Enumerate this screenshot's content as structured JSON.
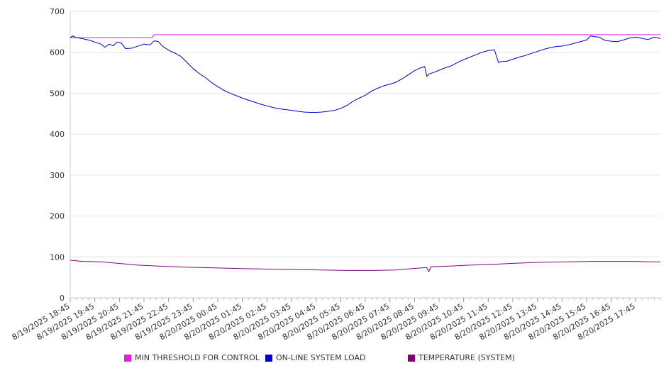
{
  "chart_data": {
    "type": "line",
    "title": "",
    "xlabel": "",
    "ylabel": "",
    "ylim": [
      0,
      700
    ],
    "yticks": [
      0,
      100,
      200,
      300,
      400,
      500,
      600,
      700
    ],
    "grid": true,
    "legend_position": "bottom",
    "x_range": [
      "8/19/2025 18:45",
      "8/20/2025 18:45"
    ],
    "x_tick_labels": [
      "8/19/2025 18:45",
      "8/19/2025 19:45",
      "8/19/2025 20:45",
      "8/19/2025 21:45",
      "8/19/2025 22:45",
      "8/19/2025 23:45",
      "8/20/2025 00:45",
      "8/20/2025 01:45",
      "8/20/2025 02:45",
      "8/20/2025 03:45",
      "8/20/2025 04:45",
      "8/20/2025 05:45",
      "8/20/2025 06:45",
      "8/20/2025 07:45",
      "8/20/2025 08:45",
      "8/20/2025 09:45",
      "8/20/2025 10:45",
      "8/20/2025 11:45",
      "8/20/2025 12:45",
      "8/20/2025 13:45",
      "8/20/2025 14:45",
      "8/20/2025 15:45",
      "8/20/2025 16:45",
      "8/20/2025 17:45"
    ],
    "series": [
      {
        "name": "MIN THRESHOLD FOR CONTROL",
        "color": "#E020E0",
        "points": [
          [
            "8/19/2025 18:45",
            636
          ],
          [
            "8/19/2025 22:05",
            636
          ],
          [
            "8/19/2025 22:10",
            643
          ],
          [
            "8/20/2025 18:45",
            643
          ]
        ]
      },
      {
        "name": "ON-LINE SYSTEM LOAD",
        "color": "#0000CC",
        "points": [
          [
            "8/19/2025 18:45",
            635
          ],
          [
            "8/19/2025 18:50",
            640
          ],
          [
            "8/19/2025 19:00",
            636
          ],
          [
            "8/19/2025 19:15",
            633
          ],
          [
            "8/19/2025 19:30",
            630
          ],
          [
            "8/19/2025 19:45",
            625
          ],
          [
            "8/19/2025 20:00",
            620
          ],
          [
            "8/19/2025 20:10",
            612
          ],
          [
            "8/19/2025 20:20",
            620
          ],
          [
            "8/19/2025 20:30",
            616
          ],
          [
            "8/19/2025 20:40",
            625
          ],
          [
            "8/19/2025 20:50",
            622
          ],
          [
            "8/19/2025 21:00",
            609
          ],
          [
            "8/19/2025 21:15",
            610
          ],
          [
            "8/19/2025 21:30",
            615
          ],
          [
            "8/19/2025 21:45",
            620
          ],
          [
            "8/19/2025 22:00",
            618
          ],
          [
            "8/19/2025 22:10",
            628
          ],
          [
            "8/19/2025 22:20",
            626
          ],
          [
            "8/19/2025 22:30",
            615
          ],
          [
            "8/19/2025 22:45",
            605
          ],
          [
            "8/19/2025 23:00",
            598
          ],
          [
            "8/19/2025 23:15",
            590
          ],
          [
            "8/19/2025 23:30",
            575
          ],
          [
            "8/19/2025 23:45",
            560
          ],
          [
            "8/20/2025 00:00",
            548
          ],
          [
            "8/20/2025 00:15",
            538
          ],
          [
            "8/20/2025 00:30",
            526
          ],
          [
            "8/20/2025 00:45",
            516
          ],
          [
            "8/20/2025 01:00",
            507
          ],
          [
            "8/20/2025 01:15",
            500
          ],
          [
            "8/20/2025 01:30",
            494
          ],
          [
            "8/20/2025 01:45",
            488
          ],
          [
            "8/20/2025 02:00",
            483
          ],
          [
            "8/20/2025 02:15",
            478
          ],
          [
            "8/20/2025 02:30",
            473
          ],
          [
            "8/20/2025 02:45",
            469
          ],
          [
            "8/20/2025 03:00",
            465
          ],
          [
            "8/20/2025 03:15",
            462
          ],
          [
            "8/20/2025 03:30",
            460
          ],
          [
            "8/20/2025 03:45",
            458
          ],
          [
            "8/20/2025 04:00",
            456
          ],
          [
            "8/20/2025 04:15",
            454
          ],
          [
            "8/20/2025 04:30",
            453
          ],
          [
            "8/20/2025 04:45",
            453
          ],
          [
            "8/20/2025 05:00",
            454
          ],
          [
            "8/20/2025 05:15",
            456
          ],
          [
            "8/20/2025 05:30",
            458
          ],
          [
            "8/20/2025 05:45",
            463
          ],
          [
            "8/20/2025 06:00",
            470
          ],
          [
            "8/20/2025 06:15",
            480
          ],
          [
            "8/20/2025 06:30",
            488
          ],
          [
            "8/20/2025 06:45",
            495
          ],
          [
            "8/20/2025 07:00",
            505
          ],
          [
            "8/20/2025 07:15",
            512
          ],
          [
            "8/20/2025 07:30",
            518
          ],
          [
            "8/20/2025 07:45",
            522
          ],
          [
            "8/20/2025 08:00",
            527
          ],
          [
            "8/20/2025 08:15",
            535
          ],
          [
            "8/20/2025 08:30",
            545
          ],
          [
            "8/20/2025 08:45",
            555
          ],
          [
            "8/20/2025 09:00",
            562
          ],
          [
            "8/20/2025 09:10",
            565
          ],
          [
            "8/20/2025 09:15",
            541
          ],
          [
            "8/20/2025 09:20",
            547
          ],
          [
            "8/20/2025 09:30",
            550
          ],
          [
            "8/20/2025 09:45",
            556
          ],
          [
            "8/20/2025 10:00",
            562
          ],
          [
            "8/20/2025 10:15",
            567
          ],
          [
            "8/20/2025 10:30",
            575
          ],
          [
            "8/20/2025 10:45",
            582
          ],
          [
            "8/20/2025 11:00",
            588
          ],
          [
            "8/20/2025 11:15",
            594
          ],
          [
            "8/20/2025 11:30",
            600
          ],
          [
            "8/20/2025 11:45",
            604
          ],
          [
            "8/20/2025 12:00",
            606
          ],
          [
            "8/20/2025 12:10",
            575
          ],
          [
            "8/20/2025 12:15",
            577
          ],
          [
            "8/20/2025 12:30",
            578
          ],
          [
            "8/20/2025 12:45",
            583
          ],
          [
            "8/20/2025 13:00",
            588
          ],
          [
            "8/20/2025 13:15",
            592
          ],
          [
            "8/20/2025 13:30",
            597
          ],
          [
            "8/20/2025 13:45",
            602
          ],
          [
            "8/20/2025 14:00",
            607
          ],
          [
            "8/20/2025 14:15",
            611
          ],
          [
            "8/20/2025 14:30",
            614
          ],
          [
            "8/20/2025 14:45",
            615
          ],
          [
            "8/20/2025 15:00",
            618
          ],
          [
            "8/20/2025 15:15",
            622
          ],
          [
            "8/20/2025 15:30",
            626
          ],
          [
            "8/20/2025 15:45",
            630
          ],
          [
            "8/20/2025 15:55",
            640
          ],
          [
            "8/20/2025 16:05",
            638
          ],
          [
            "8/20/2025 16:15",
            637
          ],
          [
            "8/20/2025 16:30",
            629
          ],
          [
            "8/20/2025 16:45",
            627
          ],
          [
            "8/20/2025 17:00",
            626
          ],
          [
            "8/20/2025 17:15",
            630
          ],
          [
            "8/20/2025 17:30",
            635
          ],
          [
            "8/20/2025 17:45",
            637
          ],
          [
            "8/20/2025 18:00",
            634
          ],
          [
            "8/20/2025 18:15",
            631
          ],
          [
            "8/20/2025 18:30",
            637
          ],
          [
            "8/20/2025 18:40",
            635
          ],
          [
            "8/20/2025 18:45",
            633
          ]
        ]
      },
      {
        "name": "TEMPERATURE (SYSTEM)",
        "color": "#800080",
        "points": [
          [
            "8/19/2025 18:45",
            92
          ],
          [
            "8/19/2025 19:15",
            89
          ],
          [
            "8/19/2025 20:00",
            88
          ],
          [
            "8/19/2025 20:45",
            84
          ],
          [
            "8/19/2025 21:30",
            80
          ],
          [
            "8/19/2025 22:30",
            77
          ],
          [
            "8/19/2025 23:30",
            75
          ],
          [
            "8/20/2025 00:45",
            73
          ],
          [
            "8/20/2025 02:00",
            71
          ],
          [
            "8/20/2025 03:00",
            70
          ],
          [
            "8/20/2025 04:00",
            69
          ],
          [
            "8/20/2025 05:00",
            68
          ],
          [
            "8/20/2025 06:00",
            67
          ],
          [
            "8/20/2025 07:00",
            67
          ],
          [
            "8/20/2025 08:00",
            68
          ],
          [
            "8/20/2025 08:45",
            72
          ],
          [
            "8/20/2025 09:15",
            74
          ],
          [
            "8/20/2025 09:20",
            64
          ],
          [
            "8/20/2025 09:25",
            76
          ],
          [
            "8/20/2025 10:00",
            77
          ],
          [
            "8/20/2025 11:00",
            80
          ],
          [
            "8/20/2025 12:00",
            82
          ],
          [
            "8/20/2025 13:00",
            85
          ],
          [
            "8/20/2025 14:00",
            87
          ],
          [
            "8/20/2025 15:00",
            88
          ],
          [
            "8/20/2025 16:00",
            89
          ],
          [
            "8/20/2025 17:00",
            89
          ],
          [
            "8/20/2025 17:45",
            89
          ],
          [
            "8/20/2025 18:15",
            88
          ],
          [
            "8/20/2025 18:45",
            88
          ]
        ]
      }
    ]
  }
}
